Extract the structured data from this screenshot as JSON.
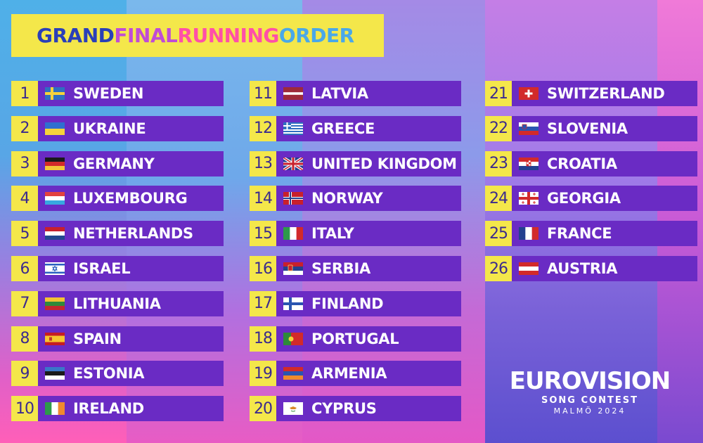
{
  "colors": {
    "yellow": "#f4e74a",
    "purple_bar": "#6a2bc4",
    "number_text": "#3b2a8e"
  },
  "title": {
    "parts": [
      {
        "text": "GRAND ",
        "color": "#2a3fb8"
      },
      {
        "text": "FINAL ",
        "color": "#c04bd6"
      },
      {
        "text": "RUNNING ",
        "color": "#ff4fa8"
      },
      {
        "text": "ORDER",
        "color": "#4aa8e8"
      }
    ]
  },
  "entries": [
    {
      "number": "1",
      "country": "SWEDEN",
      "flag": "se"
    },
    {
      "number": "2",
      "country": "UKRAINE",
      "flag": "ua"
    },
    {
      "number": "3",
      "country": "GERMANY",
      "flag": "de"
    },
    {
      "number": "4",
      "country": "LUXEMBOURG",
      "flag": "lu"
    },
    {
      "number": "5",
      "country": "NETHERLANDS",
      "flag": "nl"
    },
    {
      "number": "6",
      "country": "ISRAEL",
      "flag": "il"
    },
    {
      "number": "7",
      "country": "LITHUANIA",
      "flag": "lt"
    },
    {
      "number": "8",
      "country": "SPAIN",
      "flag": "es"
    },
    {
      "number": "9",
      "country": "ESTONIA",
      "flag": "ee"
    },
    {
      "number": "10",
      "country": "IRELAND",
      "flag": "ie"
    },
    {
      "number": "11",
      "country": "LATVIA",
      "flag": "lv"
    },
    {
      "number": "12",
      "country": "GREECE",
      "flag": "gr"
    },
    {
      "number": "13",
      "country": "UNITED KINGDOM",
      "flag": "gb"
    },
    {
      "number": "14",
      "country": "NORWAY",
      "flag": "no"
    },
    {
      "number": "15",
      "country": "ITALY",
      "flag": "it"
    },
    {
      "number": "16",
      "country": "SERBIA",
      "flag": "rs"
    },
    {
      "number": "17",
      "country": "FINLAND",
      "flag": "fi"
    },
    {
      "number": "18",
      "country": "PORTUGAL",
      "flag": "pt"
    },
    {
      "number": "19",
      "country": "ARMENIA",
      "flag": "am"
    },
    {
      "number": "20",
      "country": "CYPRUS",
      "flag": "cy"
    },
    {
      "number": "21",
      "country": "SWITZERLAND",
      "flag": "ch"
    },
    {
      "number": "22",
      "country": "SLOVENIA",
      "flag": "si"
    },
    {
      "number": "23",
      "country": "CROATIA",
      "flag": "hr"
    },
    {
      "number": "24",
      "country": "GEORGIA",
      "flag": "ge"
    },
    {
      "number": "25",
      "country": "FRANCE",
      "flag": "fr"
    },
    {
      "number": "26",
      "country": "AUSTRIA",
      "flag": "at"
    }
  ],
  "logo": {
    "word": "EUROVISION",
    "line1": "SONG CONTEST",
    "line2": "MALMÖ 2024"
  }
}
